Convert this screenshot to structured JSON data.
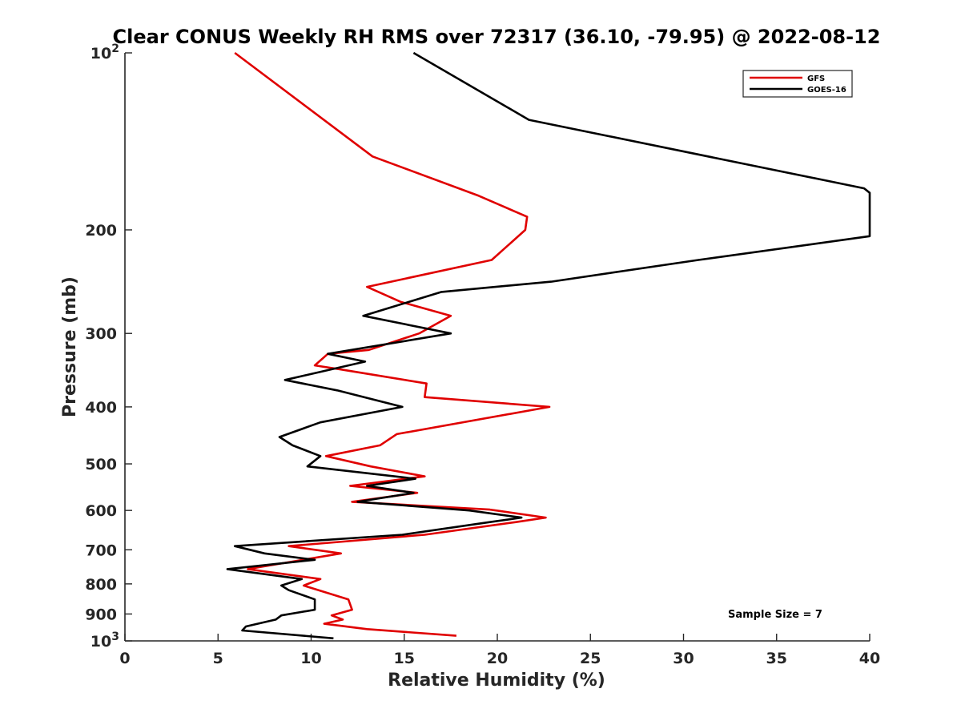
{
  "chart_data": {
    "type": "line",
    "title": "Clear CONUS Weekly RH RMS over 72317 (36.10, -79.95) @ 2022-08-12",
    "xlabel": "Relative Humidity (%)",
    "ylabel": "Pressure (mb)",
    "xlim": [
      0,
      40
    ],
    "ylim": [
      100,
      1000
    ],
    "y_scale": "log",
    "y_reversed": true,
    "grid": false,
    "x_ticks": [
      "0",
      "5",
      "10",
      "15",
      "20",
      "25",
      "30",
      "35",
      "40"
    ],
    "y_ticks": [
      {
        "value": 100,
        "base": "10",
        "exp": "2"
      },
      {
        "value": 200,
        "label": "200"
      },
      {
        "value": 300,
        "label": "300"
      },
      {
        "value": 400,
        "label": "400"
      },
      {
        "value": 500,
        "label": "500"
      },
      {
        "value": 600,
        "label": "600"
      },
      {
        "value": 700,
        "label": "700"
      },
      {
        "value": 800,
        "label": "800"
      },
      {
        "value": 900,
        "label": "900"
      },
      {
        "value": 1000,
        "base": "10",
        "exp": "3"
      }
    ],
    "legend_position": "top-right",
    "annotation": "Sample Size = 7",
    "series": [
      {
        "name": "GFS",
        "color": "#e00000",
        "points": [
          [
            5.9,
            100
          ],
          [
            13.3,
            150
          ],
          [
            19.0,
            175
          ],
          [
            21.6,
            190
          ],
          [
            21.5,
            200
          ],
          [
            19.7,
            225
          ],
          [
            13.0,
            250
          ],
          [
            14.8,
            265
          ],
          [
            17.5,
            280
          ],
          [
            15.8,
            300
          ],
          [
            13.1,
            320
          ],
          [
            10.9,
            325
          ],
          [
            10.2,
            340
          ],
          [
            11.5,
            345
          ],
          [
            16.2,
            365
          ],
          [
            16.1,
            385
          ],
          [
            22.8,
            400
          ],
          [
            14.6,
            445
          ],
          [
            13.7,
            465
          ],
          [
            10.8,
            485
          ],
          [
            13.2,
            505
          ],
          [
            16.1,
            525
          ],
          [
            12.1,
            545
          ],
          [
            15.7,
            560
          ],
          [
            12.2,
            580
          ],
          [
            19.6,
            598
          ],
          [
            22.6,
            617
          ],
          [
            21.0,
            628
          ],
          [
            16.1,
            660
          ],
          [
            8.8,
            690
          ],
          [
            11.6,
            710
          ],
          [
            6.6,
            755
          ],
          [
            10.5,
            785
          ],
          [
            9.6,
            805
          ],
          [
            12.0,
            850
          ],
          [
            12.2,
            885
          ],
          [
            11.1,
            905
          ],
          [
            11.7,
            920
          ],
          [
            10.7,
            935
          ],
          [
            13.0,
            955
          ],
          [
            17.8,
            980
          ]
        ]
      },
      {
        "name": "GOES-16",
        "color": "#000000",
        "points": [
          [
            15.5,
            100
          ],
          [
            21.7,
            130
          ],
          [
            39.7,
            170
          ],
          [
            40.0,
            173
          ],
          [
            40.0,
            205
          ],
          [
            30.8,
            225
          ],
          [
            22.9,
            245
          ],
          [
            17.0,
            255
          ],
          [
            12.8,
            280
          ],
          [
            17.5,
            300
          ],
          [
            10.9,
            325
          ],
          [
            12.9,
            335
          ],
          [
            8.6,
            360
          ],
          [
            11.4,
            375
          ],
          [
            14.9,
            400
          ],
          [
            10.5,
            425
          ],
          [
            8.3,
            450
          ],
          [
            9.0,
            465
          ],
          [
            10.5,
            485
          ],
          [
            9.8,
            505
          ],
          [
            15.6,
            530
          ],
          [
            13.0,
            545
          ],
          [
            15.5,
            560
          ],
          [
            12.5,
            580
          ],
          [
            18.5,
            600
          ],
          [
            21.3,
            617
          ],
          [
            19.6,
            628
          ],
          [
            14.9,
            660
          ],
          [
            5.9,
            690
          ],
          [
            7.5,
            710
          ],
          [
            10.2,
            728
          ],
          [
            5.5,
            755
          ],
          [
            9.5,
            785
          ],
          [
            8.4,
            805
          ],
          [
            8.8,
            820
          ],
          [
            10.2,
            850
          ],
          [
            10.2,
            885
          ],
          [
            8.4,
            905
          ],
          [
            8.1,
            920
          ],
          [
            6.5,
            945
          ],
          [
            6.3,
            960
          ],
          [
            11.2,
            990
          ]
        ]
      }
    ]
  }
}
